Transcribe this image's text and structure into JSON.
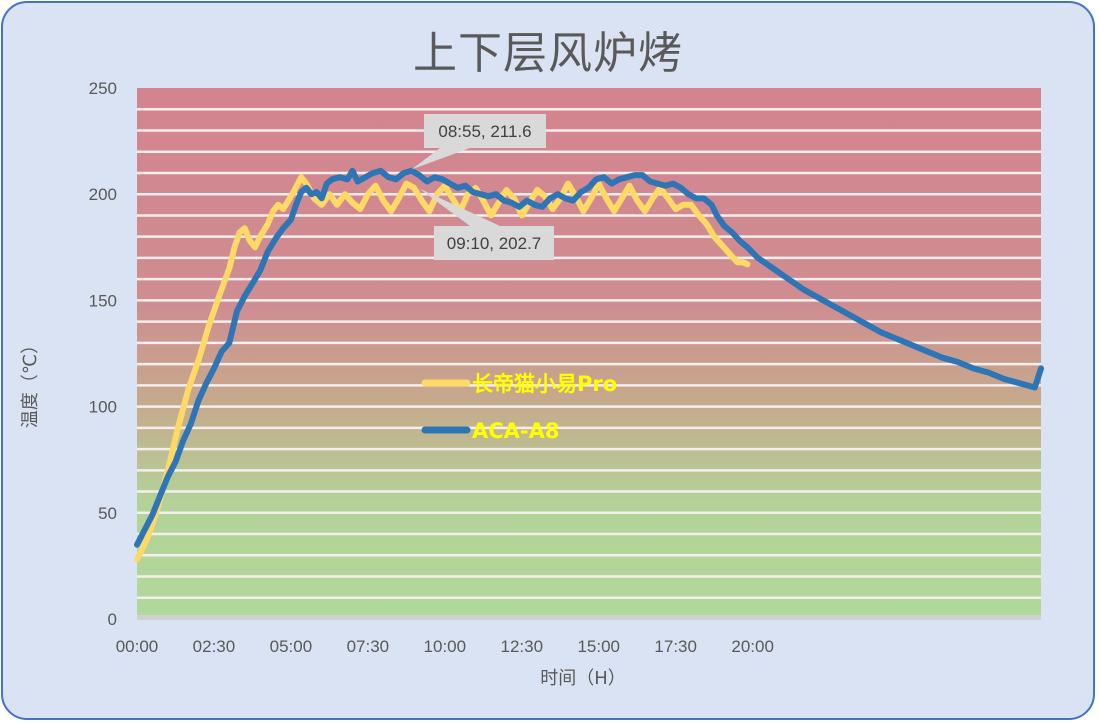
{
  "chart_data": {
    "type": "line",
    "title": "上下层风炉烤",
    "xlabel": "时间（H）",
    "ylabel": "温度（℃）",
    "ylim": [
      0,
      250
    ],
    "y_ticks": [
      "0",
      "50",
      "100",
      "150",
      "200",
      "250"
    ],
    "x_ticks": [
      "00:00",
      "02:30",
      "05:00",
      "07:30",
      "10:00",
      "12:30",
      "15:00",
      "17:30",
      "20:00"
    ],
    "x_unit": "minutes since 00:00",
    "xlim_minutes": [
      0,
      1762
    ],
    "grid": "horizontal every 10",
    "background_gradient": {
      "top": "#d4848f",
      "middle": "#c9a48c",
      "bottom": "#b0d79a"
    },
    "legend_position": "inside-center",
    "series": [
      {
        "name": "长帝猫小易Pro",
        "color": "#ffd966",
        "points": [
          [
            0,
            28
          ],
          [
            20,
            38
          ],
          [
            40,
            52
          ],
          [
            60,
            70
          ],
          [
            80,
            90
          ],
          [
            100,
            108
          ],
          [
            120,
            122
          ],
          [
            140,
            138
          ],
          [
            160,
            152
          ],
          [
            180,
            165
          ],
          [
            190,
            175
          ],
          [
            200,
            182
          ],
          [
            210,
            184
          ],
          [
            220,
            178
          ],
          [
            230,
            175
          ],
          [
            240,
            180
          ],
          [
            255,
            186
          ],
          [
            265,
            192
          ],
          [
            275,
            195
          ],
          [
            285,
            193
          ],
          [
            295,
            197
          ],
          [
            305,
            201
          ],
          [
            320,
            208
          ],
          [
            330,
            205
          ],
          [
            345,
            198
          ],
          [
            360,
            195
          ],
          [
            375,
            200
          ],
          [
            390,
            195
          ],
          [
            405,
            200
          ],
          [
            420,
            196
          ],
          [
            435,
            193
          ],
          [
            450,
            200
          ],
          [
            465,
            204
          ],
          [
            480,
            197
          ],
          [
            495,
            192
          ],
          [
            510,
            198
          ],
          [
            525,
            205
          ],
          [
            540,
            203
          ],
          [
            555,
            197
          ],
          [
            570,
            192
          ],
          [
            585,
            200
          ],
          [
            600,
            204
          ],
          [
            615,
            198
          ],
          [
            630,
            192
          ],
          [
            645,
            200
          ],
          [
            660,
            203
          ],
          [
            675,
            197
          ],
          [
            690,
            190
          ],
          [
            705,
            196
          ],
          [
            720,
            202
          ],
          [
            735,
            198
          ],
          [
            750,
            190
          ],
          [
            765,
            196
          ],
          [
            780,
            202
          ],
          [
            795,
            199
          ],
          [
            810,
            193
          ],
          [
            825,
            198
          ],
          [
            840,
            205
          ],
          [
            855,
            199
          ],
          [
            870,
            192
          ],
          [
            885,
            198
          ],
          [
            900,
            205
          ],
          [
            915,
            198
          ],
          [
            930,
            192
          ],
          [
            945,
            198
          ],
          [
            960,
            204
          ],
          [
            975,
            197
          ],
          [
            990,
            192
          ],
          [
            1005,
            198
          ],
          [
            1020,
            203
          ],
          [
            1035,
            198
          ],
          [
            1050,
            193
          ],
          [
            1065,
            195
          ],
          [
            1080,
            195
          ],
          [
            1095,
            190
          ],
          [
            1110,
            186
          ],
          [
            1125,
            180
          ],
          [
            1140,
            176
          ],
          [
            1155,
            172
          ],
          [
            1170,
            168
          ],
          [
            1180,
            168
          ],
          [
            1190,
            167
          ]
        ]
      },
      {
        "name": "ACA-A8",
        "color": "#2e75b6",
        "points": [
          [
            0,
            35
          ],
          [
            15,
            42
          ],
          [
            30,
            49
          ],
          [
            45,
            58
          ],
          [
            60,
            67
          ],
          [
            75,
            74
          ],
          [
            90,
            84
          ],
          [
            105,
            92
          ],
          [
            120,
            103
          ],
          [
            135,
            111
          ],
          [
            150,
            118
          ],
          [
            165,
            126
          ],
          [
            180,
            130
          ],
          [
            195,
            145
          ],
          [
            210,
            152
          ],
          [
            225,
            158
          ],
          [
            240,
            164
          ],
          [
            255,
            173
          ],
          [
            270,
            179
          ],
          [
            285,
            184
          ],
          [
            300,
            188
          ],
          [
            310,
            195
          ],
          [
            320,
            201
          ],
          [
            330,
            203
          ],
          [
            340,
            200
          ],
          [
            350,
            201
          ],
          [
            360,
            198
          ],
          [
            370,
            205
          ],
          [
            380,
            207
          ],
          [
            395,
            208
          ],
          [
            410,
            207
          ],
          [
            420,
            211
          ],
          [
            430,
            206
          ],
          [
            445,
            208
          ],
          [
            460,
            210
          ],
          [
            475,
            211
          ],
          [
            490,
            208
          ],
          [
            505,
            207
          ],
          [
            520,
            210
          ],
          [
            535,
            211
          ],
          [
            550,
            209
          ],
          [
            565,
            206
          ],
          [
            580,
            208
          ],
          [
            595,
            207
          ],
          [
            610,
            205
          ],
          [
            625,
            203
          ],
          [
            640,
            204
          ],
          [
            655,
            201
          ],
          [
            670,
            200
          ],
          [
            685,
            199
          ],
          [
            700,
            200
          ],
          [
            715,
            197
          ],
          [
            730,
            196
          ],
          [
            745,
            194
          ],
          [
            760,
            197
          ],
          [
            775,
            195
          ],
          [
            790,
            194
          ],
          [
            805,
            198
          ],
          [
            820,
            200
          ],
          [
            835,
            198
          ],
          [
            850,
            197
          ],
          [
            865,
            201
          ],
          [
            880,
            203
          ],
          [
            895,
            207
          ],
          [
            910,
            208
          ],
          [
            925,
            205
          ],
          [
            940,
            207
          ],
          [
            955,
            208
          ],
          [
            970,
            209
          ],
          [
            985,
            209
          ],
          [
            1000,
            206
          ],
          [
            1015,
            205
          ],
          [
            1030,
            204
          ],
          [
            1045,
            205
          ],
          [
            1060,
            203
          ],
          [
            1075,
            200
          ],
          [
            1090,
            198
          ],
          [
            1105,
            198
          ],
          [
            1120,
            195
          ],
          [
            1130,
            190
          ],
          [
            1145,
            185
          ],
          [
            1160,
            182
          ],
          [
            1175,
            178
          ],
          [
            1190,
            175
          ],
          [
            1210,
            170
          ],
          [
            1240,
            165
          ],
          [
            1270,
            160
          ],
          [
            1300,
            155
          ],
          [
            1330,
            151
          ],
          [
            1360,
            147
          ],
          [
            1390,
            143
          ],
          [
            1420,
            139
          ],
          [
            1450,
            135
          ],
          [
            1480,
            132
          ],
          [
            1510,
            129
          ],
          [
            1540,
            126
          ],
          [
            1570,
            123
          ],
          [
            1600,
            121
          ],
          [
            1630,
            118
          ],
          [
            1660,
            116
          ],
          [
            1690,
            113
          ],
          [
            1720,
            111
          ],
          [
            1750,
            109
          ],
          [
            1762,
            118
          ]
        ]
      }
    ],
    "annotations": [
      {
        "label": "08:55, 211.6",
        "series": "ACA-A8",
        "x_minutes": 535,
        "y": 211.6
      },
      {
        "label": "09:10, 202.7",
        "series": "长帝猫小易Pro",
        "x_minutes": 550,
        "y": 202.7
      }
    ]
  }
}
